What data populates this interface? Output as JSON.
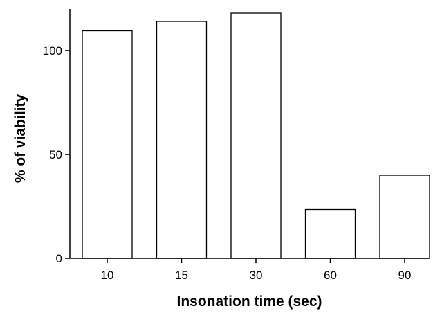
{
  "chart_data": {
    "type": "bar",
    "title": "",
    "xlabel": "Insonation time (sec)",
    "ylabel": "% of viability",
    "categories": [
      "10",
      "15",
      "30",
      "60",
      "90"
    ],
    "values": [
      109.5,
      114,
      118,
      23.5,
      40
    ],
    "ylim": [
      0,
      120
    ],
    "yticks": [
      0,
      50,
      100
    ],
    "grid": false,
    "legend": "none",
    "colors": {
      "bar_fill": "#ffffff",
      "bar_stroke": "#000000",
      "axis": "#000000"
    }
  }
}
